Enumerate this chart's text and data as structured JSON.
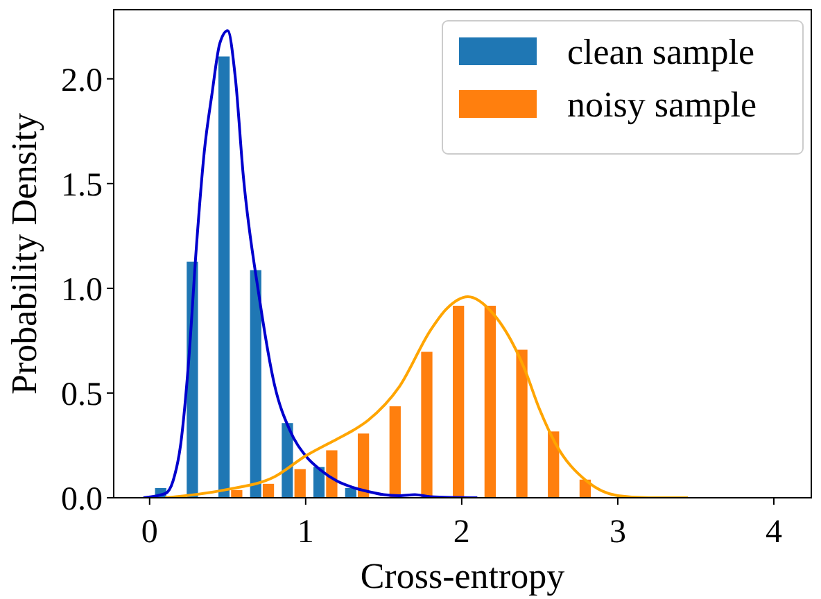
{
  "chart_data": {
    "type": "histogram",
    "xlabel": "Cross-entropy",
    "ylabel": "Probability Density",
    "bins": [
      0.01,
      0.213,
      0.416,
      0.619,
      0.822,
      1.025,
      1.228,
      1.431,
      1.634,
      1.837,
      2.04,
      2.243,
      2.446,
      2.649,
      2.852
    ],
    "series": [
      {
        "name": "clean sample",
        "color": "#1f77b4",
        "values": [
          0.05,
          1.13,
          2.11,
          1.09,
          0.36,
          0.15,
          0.05,
          null,
          0,
          0,
          0,
          0,
          0,
          0
        ]
      },
      {
        "name": "noisy sample",
        "color": "#ff7f0e",
        "values": [
          0,
          0,
          0.04,
          0.07,
          0.14,
          0.23,
          0.31,
          0.44,
          0.7,
          0.92,
          0.92,
          0.71,
          0.32,
          0.09
        ]
      },
      {
        "type": "line",
        "color": "#0000cd",
        "x": [
          -0.04,
          0.1,
          0.15,
          0.2,
          0.25,
          0.3,
          0.35,
          0.4,
          0.45,
          0.5,
          0.55,
          0.6,
          0.7,
          0.8,
          0.9,
          1.0,
          1.1,
          1.2,
          1.3,
          1.4,
          1.5,
          1.6,
          1.7,
          1.8,
          2.1
        ],
        "values": [
          0,
          0.02,
          0.08,
          0.26,
          0.65,
          1.2,
          1.65,
          1.93,
          2.17,
          2.23,
          2.0,
          1.54,
          0.97,
          0.54,
          0.32,
          0.2,
          0.13,
          0.08,
          0.05,
          0.03,
          0.015,
          0.01,
          0.015,
          0.005,
          0
        ]
      },
      {
        "type": "line",
        "color": "#ffa500",
        "x": [
          0.1,
          0.5,
          0.8,
          1.0,
          1.2,
          1.3,
          1.4,
          1.6,
          1.8,
          1.9,
          2.04,
          2.2,
          2.4,
          2.5,
          2.6,
          2.8,
          3.0,
          3.2,
          3.45
        ],
        "values": [
          0,
          0.04,
          0.1,
          0.2,
          0.28,
          0.32,
          0.37,
          0.53,
          0.8,
          0.9,
          0.96,
          0.88,
          0.62,
          0.42,
          0.26,
          0.08,
          0.01,
          0,
          0
        ]
      }
    ],
    "xlim": [
      -0.23,
      4.24
    ],
    "ylim": [
      0,
      2.33
    ],
    "xticks": [
      0,
      1,
      2,
      3,
      4
    ],
    "yticks": [
      {
        "value": 0,
        "label": "0.0"
      },
      {
        "value": 0.5,
        "label": "0.5"
      },
      {
        "value": 1,
        "label": "1.0"
      },
      {
        "value": 1.5,
        "label": "1.5"
      },
      {
        "value": 2,
        "label": "2.0"
      }
    ],
    "legend": "top right"
  }
}
